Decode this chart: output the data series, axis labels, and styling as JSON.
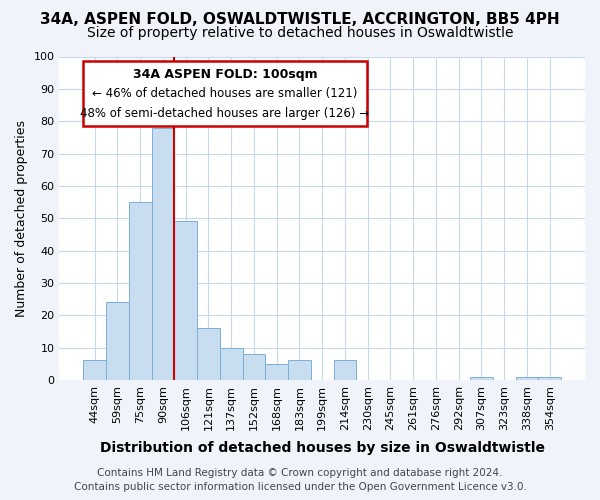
{
  "title": "34A, ASPEN FOLD, OSWALDTWISTLE, ACCRINGTON, BB5 4PH",
  "subtitle": "Size of property relative to detached houses in Oswaldtwistle",
  "xlabel": "Distribution of detached houses by size in Oswaldtwistle",
  "ylabel": "Number of detached properties",
  "categories": [
    "44sqm",
    "59sqm",
    "75sqm",
    "90sqm",
    "106sqm",
    "121sqm",
    "137sqm",
    "152sqm",
    "168sqm",
    "183sqm",
    "199sqm",
    "214sqm",
    "230sqm",
    "245sqm",
    "261sqm",
    "276sqm",
    "292sqm",
    "307sqm",
    "323sqm",
    "338sqm",
    "354sqm"
  ],
  "values": [
    6,
    24,
    55,
    78,
    49,
    16,
    10,
    8,
    5,
    6,
    0,
    6,
    0,
    0,
    0,
    0,
    0,
    1,
    0,
    1,
    1
  ],
  "bar_color": "#c8ddf0",
  "bar_edge_color": "#7ab0d8",
  "red_line_x": 3.5,
  "annotation_title": "34A ASPEN FOLD: 100sqm",
  "annotation_line1": "← 46% of detached houses are smaller (121)",
  "annotation_line2": "48% of semi-detached houses are larger (126) →",
  "footer1": "Contains HM Land Registry data © Crown copyright and database right 2024.",
  "footer2": "Contains public sector information licensed under the Open Government Licence v3.0.",
  "plot_bg_color": "#ffffff",
  "fig_bg_color": "#f0f4fa",
  "ylim": [
    0,
    100
  ],
  "title_fontsize": 11,
  "subtitle_fontsize": 10,
  "xlabel_fontsize": 10,
  "ylabel_fontsize": 9,
  "tick_fontsize": 8,
  "footer_fontsize": 7.5,
  "ann_title_fontsize": 9,
  "ann_text_fontsize": 8.5
}
